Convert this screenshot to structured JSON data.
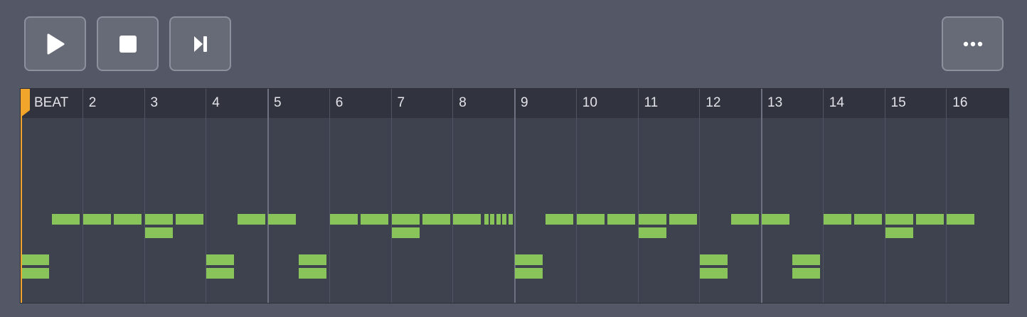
{
  "toolbar": {
    "play_icon": "play-icon",
    "stop_icon": "stop-icon",
    "step_icon": "step-forward-icon",
    "more_icon": "more-icon"
  },
  "sequencer": {
    "columns": [
      "BEAT",
      "2",
      "3",
      "4",
      "5",
      "6",
      "7",
      "8",
      "9",
      "10",
      "11",
      "12",
      "13",
      "14",
      "15",
      "16"
    ],
    "playhead_beat": 0,
    "colors": {
      "note": "#88c45a",
      "playhead": "#f2a52b"
    }
  }
}
